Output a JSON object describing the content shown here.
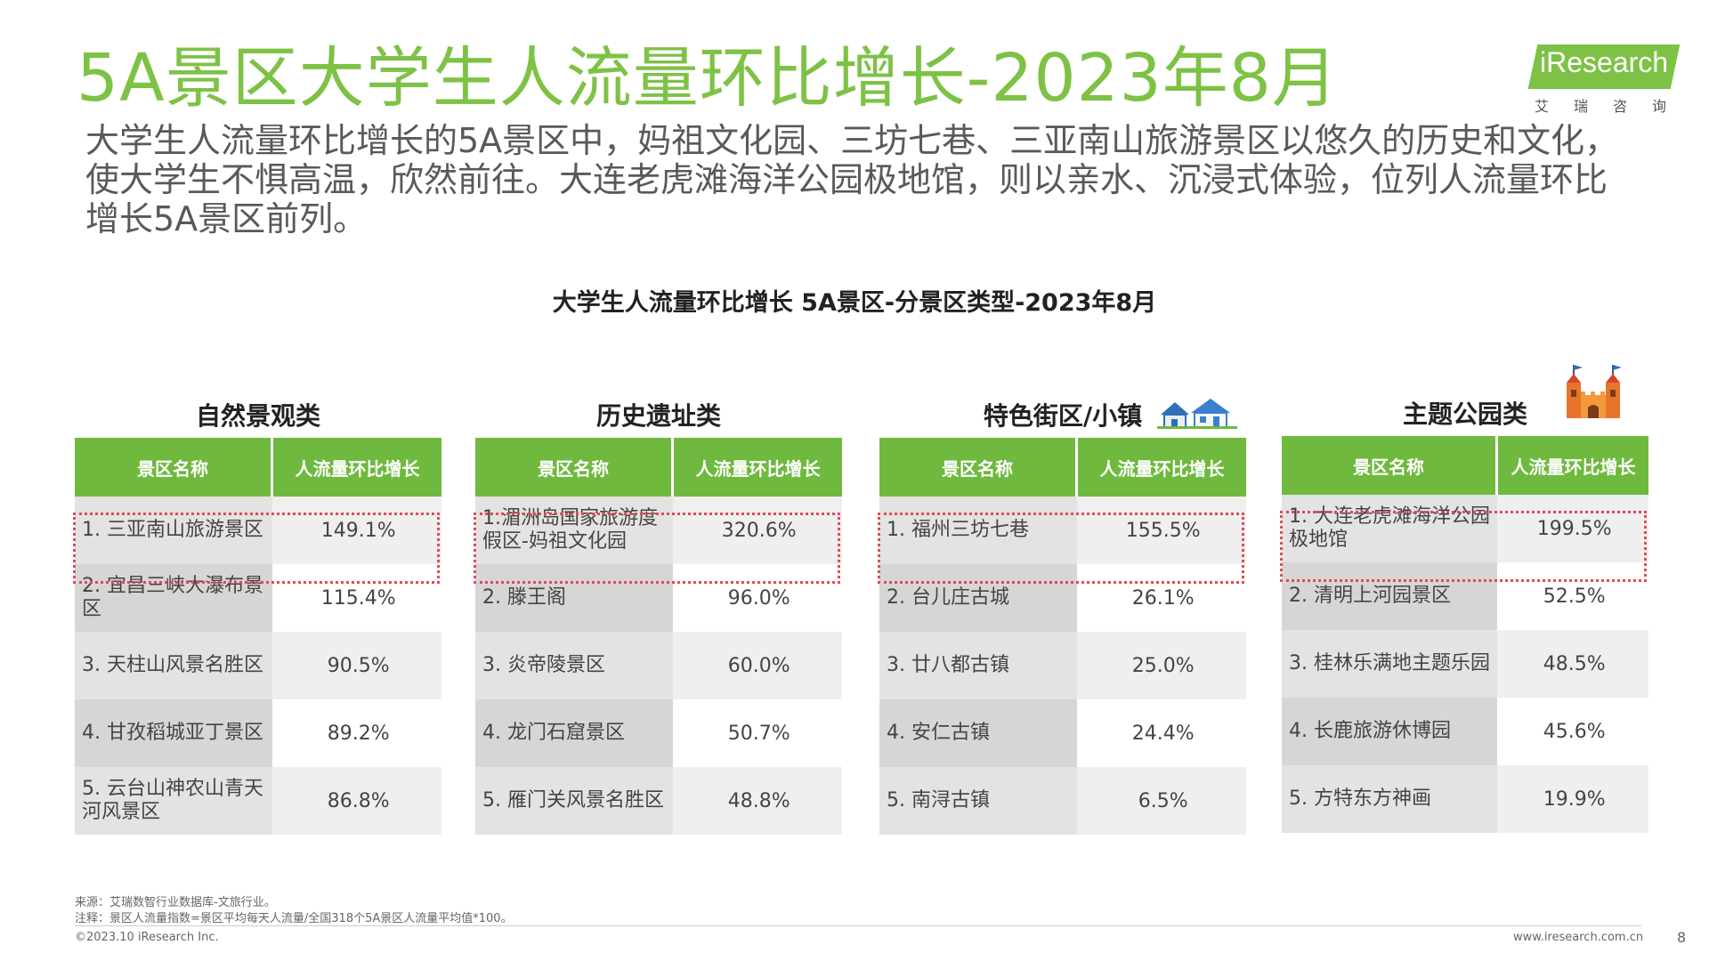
{
  "title": "5A景区大学生人流量环比增长-2023年8月",
  "logo": {
    "text": "iResearch",
    "cn": "艾瑞咨询"
  },
  "lead": "大学生人流量环比增长的5A景区中，妈祖文化园、三坊七巷、三亚南山旅游景区以悠久的历史和文化，使大学生不惧高温，欣然前往。大连老虎滩海洋公园极地馆，则以亲水、沉浸式体验，位列人流量环比增长5A景区前列。",
  "subtitle": "大学生人流量环比增长 5A景区-分景区类型-2023年8月",
  "colors": {
    "brand_green": "#7dc245",
    "header_green": "#6fb93f",
    "highlight_red": "#e04a57"
  },
  "panels": [
    {
      "title": "自然景观类",
      "col1": "景区名称",
      "col2": "人流量环比增长",
      "rows": [
        {
          "name": "1. 三亚南山旅游景区",
          "value": "149.1%"
        },
        {
          "name": "2. 宜昌三峡大瀑布景区",
          "value": "115.4%"
        },
        {
          "name": "3. 天柱山风景名胜区",
          "value": "90.5%"
        },
        {
          "name": "4. 甘孜稻城亚丁景区",
          "value": "89.2%"
        },
        {
          "name": "5. 云台山神农山青天河风景区",
          "value": "86.8%"
        }
      ]
    },
    {
      "title": "历史遗址类",
      "col1": "景区名称",
      "col2": "人流量环比增长",
      "rows": [
        {
          "name": "1.湄洲岛国家旅游度假区-妈祖文化园",
          "value": "320.6%"
        },
        {
          "name": "2. 滕王阁",
          "value": "96.0%"
        },
        {
          "name": "3. 炎帝陵景区",
          "value": "60.0%"
        },
        {
          "name": "4. 龙门石窟景区",
          "value": "50.7%"
        },
        {
          "name": "5. 雁门关风景名胜区",
          "value": "48.8%"
        }
      ]
    },
    {
      "title": "特色街区/小镇",
      "icon": "houses-icon",
      "col1": "景区名称",
      "col2": "人流量环比增长",
      "rows": [
        {
          "name": "1. 福州三坊七巷",
          "value": "155.5%"
        },
        {
          "name": "2. 台儿庄古城",
          "value": "26.1%"
        },
        {
          "name": "3. 廿八都古镇",
          "value": "25.0%"
        },
        {
          "name": "4. 安仁古镇",
          "value": "24.4%"
        },
        {
          "name": "5. 南浔古镇",
          "value": "6.5%"
        }
      ]
    },
    {
      "title": "主题公园类",
      "icon": "castle-icon",
      "col1": "景区名称",
      "col2": "人流量环比增长",
      "rows": [
        {
          "name": "1. 大连老虎滩海洋公园极地馆",
          "value": "199.5%"
        },
        {
          "name": "2. 清明上河园景区",
          "value": "52.5%"
        },
        {
          "name": "3. 桂林乐满地主题乐园",
          "value": "48.5%"
        },
        {
          "name": "4. 长鹿旅游休博园",
          "value": "45.6%"
        },
        {
          "name": "5. 方特东方神画",
          "value": "19.9%"
        }
      ]
    }
  ],
  "footer": {
    "source": "来源：艾瑞数智行业数据库-文旅行业。",
    "note": "注释：景区人流量指数=景区平均每天人流量/全国318个5A景区人流量平均值*100。",
    "copyright": "©2023.10 iResearch Inc.",
    "site": "www.iresearch.com.cn",
    "page": "8"
  }
}
